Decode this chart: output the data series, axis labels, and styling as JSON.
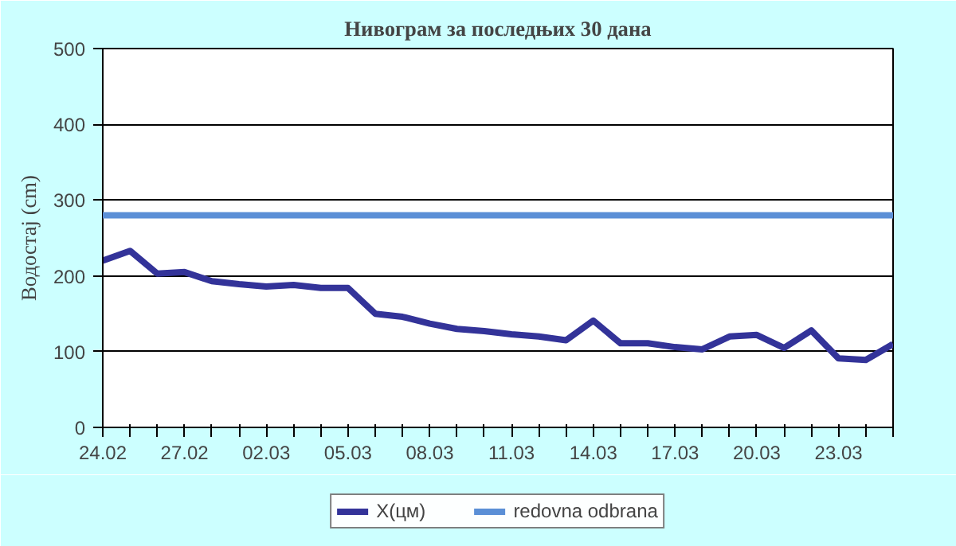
{
  "chart_data": {
    "type": "line",
    "title": "Нивограм за последњих 30 дана",
    "ylabel": "Водостај (cm)",
    "categories": [
      "24.02",
      null,
      null,
      "27.02",
      null,
      null,
      "02.03",
      null,
      null,
      "05.03",
      null,
      null,
      "08.03",
      null,
      null,
      "11.03",
      null,
      null,
      "14.03",
      null,
      null,
      "17.03",
      null,
      null,
      "20.03",
      null,
      null,
      "23.03",
      null,
      null
    ],
    "series": [
      {
        "name": "X(цм)",
        "color": "#333399",
        "values": [
          220,
          233,
          203,
          205,
          193,
          189,
          186,
          188,
          184,
          184,
          150,
          146,
          137,
          130,
          127,
          123,
          120,
          115,
          141,
          111,
          111,
          106,
          103,
          120,
          122,
          105,
          128,
          91,
          89,
          110
        ]
      }
    ],
    "ref_lines": [
      {
        "axis": "y",
        "value": 280,
        "label": "redovna odbrana",
        "color": "#5b8fd6"
      }
    ],
    "ylim": [
      0,
      500
    ],
    "yticks": [
      0,
      100,
      200,
      300,
      400,
      500
    ],
    "grid": "y",
    "legend": "bottom",
    "marker": "none",
    "line_style": "solid"
  }
}
